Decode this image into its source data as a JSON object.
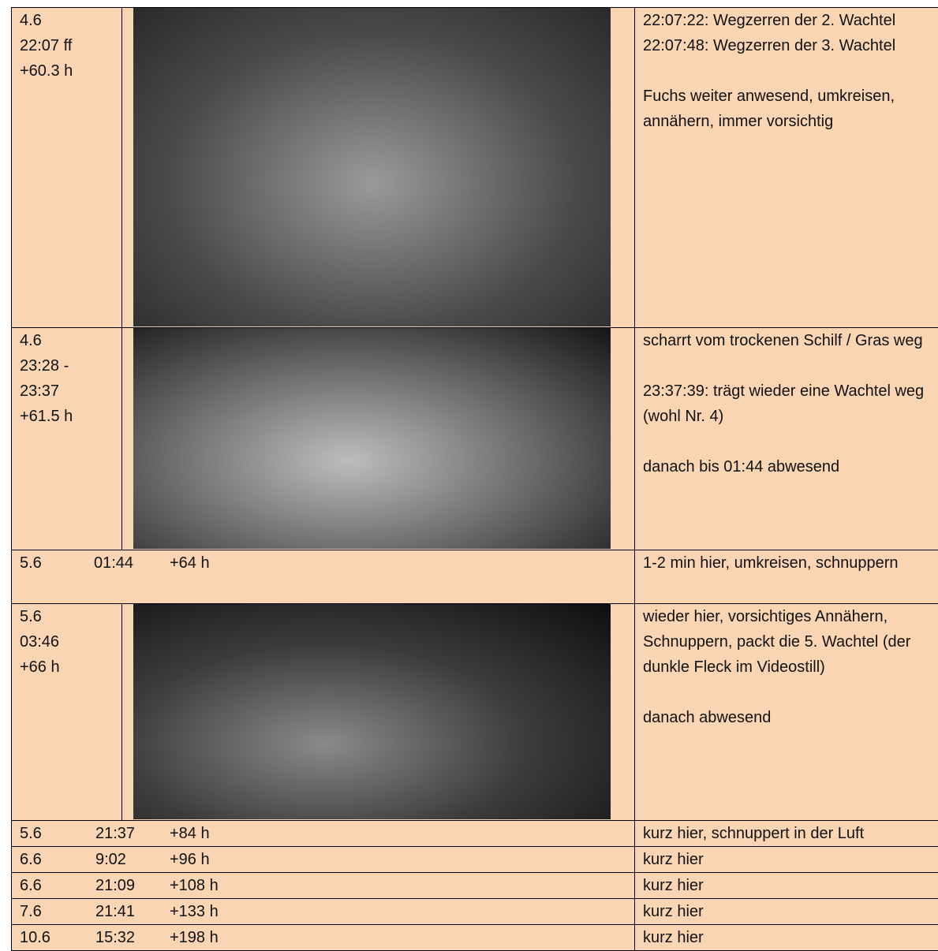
{
  "rows": [
    {
      "left": [
        "4.6",
        "22:07 ff",
        "+60.3 h"
      ],
      "right": [
        [
          "22:07:22: Wegzerren der 2. Wachtel",
          "22:07:48: Wegzerren der 3. Wachtel"
        ],
        [
          "Fuchs weiter anwesend, umkreisen, annähern, immer vorsichtig"
        ]
      ]
    },
    {
      "left": [
        "4.6",
        "23:28 -",
        "23:37",
        "+61.5 h"
      ],
      "right": [
        [
          "scharrt vom trockenen Schilf / Gras weg"
        ],
        [
          "23:37:39: trägt wieder eine Wachtel weg (wohl Nr. 4)"
        ],
        [
          "danach bis 01:44 abwesend"
        ]
      ]
    },
    {
      "date": "5.6",
      "time": "01:44",
      "offset": "+64 h",
      "note": "1-2 min hier, umkreisen, schnuppern"
    },
    {
      "left": [
        "5.6",
        "03:46",
        "+66 h"
      ],
      "right": [
        [
          "wieder hier, vorsichtiges Annähern, Schnuppern, packt die 5. Wachtel (der dunkle Fleck im Videostill)"
        ],
        [
          "danach abwesend"
        ]
      ]
    },
    {
      "date": "5.6",
      "time": "21:37",
      "offset": "+84 h",
      "note": "kurz hier, schnuppert in der Luft"
    },
    {
      "date": "6.6",
      "time": "9:02",
      "offset": "+96 h",
      "note": "kurz hier"
    },
    {
      "date": "6.6",
      "time": "21:09",
      "offset": "+108 h",
      "note": "kurz hier"
    },
    {
      "date": "7.6",
      "time": "21:41",
      "offset": "+133 h",
      "note": "kurz hier"
    },
    {
      "date": "10.6",
      "time": "15:32",
      "offset": "+198 h",
      "note": "kurz hier"
    }
  ]
}
